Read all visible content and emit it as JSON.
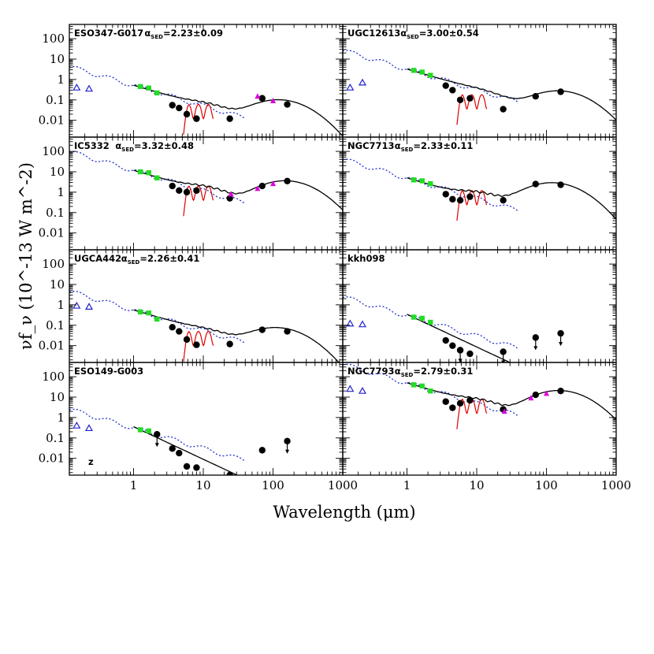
{
  "figure": {
    "xlabel": "Wavelength (μm)",
    "ylabel": "νf_ν (10^-13 W m^-2)",
    "x_tick_labels": [
      "1",
      "10",
      "100",
      "1000"
    ],
    "y_tick_labels": [
      "100",
      "10",
      "1",
      "0.1",
      "0.01"
    ]
  },
  "colors": {
    "photometry": "#000000",
    "twomass": "#22dd22",
    "galex": "#2222cc",
    "iras": "#dd00dd",
    "stellar_model": "#2233cc",
    "pah_model": "#dd0000",
    "total_model": "#000000"
  },
  "chart_data": [
    {
      "type": "scatter",
      "name": "ESO347-G017",
      "alpha": "2.23±0.09",
      "xlim": [
        0.12,
        1000
      ],
      "ylim": [
        0.0015,
        500
      ],
      "log": true,
      "note": "",
      "points": [
        [
          3.6,
          0.055
        ],
        [
          4.5,
          0.04
        ],
        [
          5.8,
          0.02
        ],
        [
          8,
          0.012
        ],
        [
          24,
          0.012
        ],
        [
          70,
          0.12
        ],
        [
          160,
          0.06
        ]
      ],
      "upper_limits": [],
      "twomass": [
        [
          1.25,
          0.45
        ],
        [
          1.65,
          0.38
        ],
        [
          2.17,
          0.22
        ]
      ],
      "galex": [
        [
          0.153,
          0.4
        ],
        [
          0.23,
          0.35
        ]
      ],
      "iras": [
        [
          60,
          0.15
        ],
        [
          100,
          0.09
        ]
      ],
      "stellar_norm": 0.42,
      "dust": {
        "peak": 0.1,
        "wpeak": 120,
        "mid": 0.03
      },
      "pah": true
    },
    {
      "type": "scatter",
      "name": "UGC12613",
      "alpha": "3.00±0.54",
      "xlim": [
        0.12,
        1000
      ],
      "ylim": [
        0.0015,
        500
      ],
      "log": true,
      "note": "",
      "points": [
        [
          3.6,
          0.5
        ],
        [
          4.5,
          0.3
        ],
        [
          5.8,
          0.1
        ],
        [
          8,
          0.12
        ],
        [
          24,
          0.035
        ],
        [
          70,
          0.15
        ],
        [
          160,
          0.25
        ]
      ],
      "upper_limits": [],
      "twomass": [
        [
          1.25,
          2.8
        ],
        [
          1.65,
          2.3
        ],
        [
          2.17,
          1.6
        ]
      ],
      "galex": [
        [
          0.153,
          0.4
        ],
        [
          0.23,
          0.7
        ]
      ],
      "iras": [],
      "stellar_norm": 2.6,
      "dust": {
        "peak": 0.27,
        "wpeak": 150,
        "mid": 0.09
      },
      "pah": true
    },
    {
      "type": "scatter",
      "name": "IC5332",
      "alpha": "3.32±0.48",
      "xlim": [
        0.12,
        1000
      ],
      "ylim": [
        0.0015,
        500
      ],
      "log": true,
      "note": "",
      "points": [
        [
          3.6,
          2
        ],
        [
          4.5,
          1.2
        ],
        [
          5.8,
          1.0
        ],
        [
          8,
          1.2
        ],
        [
          24,
          0.5
        ],
        [
          70,
          2
        ],
        [
          160,
          3.5
        ]
      ],
      "upper_limits": [],
      "twomass": [
        [
          1.25,
          10
        ],
        [
          1.65,
          9
        ],
        [
          2.17,
          5
        ]
      ],
      "galex": [],
      "iras": [
        [
          25,
          0.8
        ],
        [
          60,
          1.5
        ],
        [
          100,
          2.6
        ]
      ],
      "stellar_norm": 9.5,
      "dust": {
        "peak": 3.6,
        "wpeak": 150,
        "mid": 1.0
      },
      "pah": true
    },
    {
      "type": "scatter",
      "name": "NGC7713",
      "alpha": "2.33±0.11",
      "xlim": [
        0.12,
        1000
      ],
      "ylim": [
        0.0015,
        500
      ],
      "log": true,
      "note": "",
      "points": [
        [
          3.6,
          0.8
        ],
        [
          4.5,
          0.45
        ],
        [
          5.8,
          0.4
        ],
        [
          8,
          0.6
        ],
        [
          24,
          0.4
        ],
        [
          70,
          2.5
        ],
        [
          160,
          2.3
        ]
      ],
      "upper_limits": [],
      "twomass": [
        [
          1.25,
          4
        ],
        [
          1.65,
          3.6
        ],
        [
          2.17,
          2.6
        ]
      ],
      "galex": [],
      "iras": [],
      "stellar_norm": 4.0,
      "dust": {
        "peak": 2.9,
        "wpeak": 120,
        "mid": 0.6
      },
      "pah": true
    },
    {
      "type": "scatter",
      "name": "UGCA442",
      "alpha": "2.26±0.41",
      "xlim": [
        0.12,
        1000
      ],
      "ylim": [
        0.0015,
        500
      ],
      "log": true,
      "note": "",
      "points": [
        [
          3.6,
          0.08
        ],
        [
          4.5,
          0.05
        ],
        [
          5.8,
          0.02
        ],
        [
          8,
          0.011
        ],
        [
          24,
          0.012
        ],
        [
          70,
          0.06
        ],
        [
          160,
          0.05
        ]
      ],
      "upper_limits": [],
      "twomass": [
        [
          1.25,
          0.45
        ],
        [
          1.65,
          0.4
        ],
        [
          2.17,
          0.2
        ]
      ],
      "galex": [
        [
          0.153,
          0.9
        ],
        [
          0.23,
          0.8
        ]
      ],
      "iras": [],
      "stellar_norm": 0.45,
      "dust": {
        "peak": 0.075,
        "wpeak": 110,
        "mid": 0.025
      },
      "pah": true
    },
    {
      "type": "scatter",
      "name": "kkh098",
      "alpha": "",
      "xlim": [
        0.12,
        1000
      ],
      "ylim": [
        0.0015,
        500
      ],
      "log": true,
      "note": "",
      "points": [
        [
          3.6,
          0.018
        ],
        [
          4.5,
          0.01
        ],
        [
          5.8,
          0.006
        ],
        [
          8,
          0.004
        ]
      ],
      "upper_limits": [
        [
          5.8,
          0.006
        ],
        [
          24,
          0.005
        ],
        [
          70,
          0.025
        ],
        [
          160,
          0.04
        ]
      ],
      "twomass": [
        [
          1.25,
          0.25
        ],
        [
          1.65,
          0.22
        ],
        [
          2.17,
          0.14
        ]
      ],
      "galex": [
        [
          0.153,
          0.12
        ],
        [
          0.23,
          0.11
        ]
      ],
      "iras": [],
      "stellar_norm": 0.24,
      "dust": null,
      "pah": false
    },
    {
      "type": "scatter",
      "name": "ESO149-G003",
      "alpha": "",
      "xlim": [
        0.12,
        1000
      ],
      "ylim": [
        0.0015,
        500
      ],
      "log": true,
      "note": "z",
      "points": [
        [
          3.6,
          0.03
        ],
        [
          4.5,
          0.018
        ],
        [
          5.8,
          0.004
        ],
        [
          8,
          0.0035
        ],
        [
          24,
          0.0015
        ],
        [
          70,
          0.025
        ]
      ],
      "upper_limits": [
        [
          2.17,
          0.15
        ],
        [
          160,
          0.07
        ]
      ],
      "twomass": [
        [
          1.25,
          0.25
        ],
        [
          1.65,
          0.22
        ],
        [
          2.17,
          0.15
        ]
      ],
      "galex": [
        [
          0.153,
          0.4
        ],
        [
          0.23,
          0.3
        ]
      ],
      "iras": [],
      "stellar_norm": 0.25,
      "dust": null,
      "pah": false
    },
    {
      "type": "scatter",
      "name": "NGC7793",
      "alpha": "2.79±0.31",
      "xlim": [
        0.12,
        1000
      ],
      "ylim": [
        0.0015,
        500
      ],
      "log": true,
      "note": "",
      "points": [
        [
          3.6,
          6
        ],
        [
          4.5,
          3
        ],
        [
          5.8,
          5
        ],
        [
          8,
          7
        ],
        [
          24,
          2.5
        ],
        [
          70,
          13
        ],
        [
          160,
          20
        ]
      ],
      "upper_limits": [],
      "twomass": [
        [
          1.25,
          40
        ],
        [
          1.65,
          35
        ],
        [
          2.17,
          20
        ]
      ],
      "galex": [
        [
          0.153,
          25
        ],
        [
          0.23,
          20
        ]
      ],
      "iras": [
        [
          25,
          2
        ],
        [
          60,
          9
        ],
        [
          100,
          15
        ]
      ],
      "stellar_norm": 40,
      "dust": {
        "peak": 21,
        "wpeak": 150,
        "mid": 4.0
      },
      "pah": true
    }
  ]
}
